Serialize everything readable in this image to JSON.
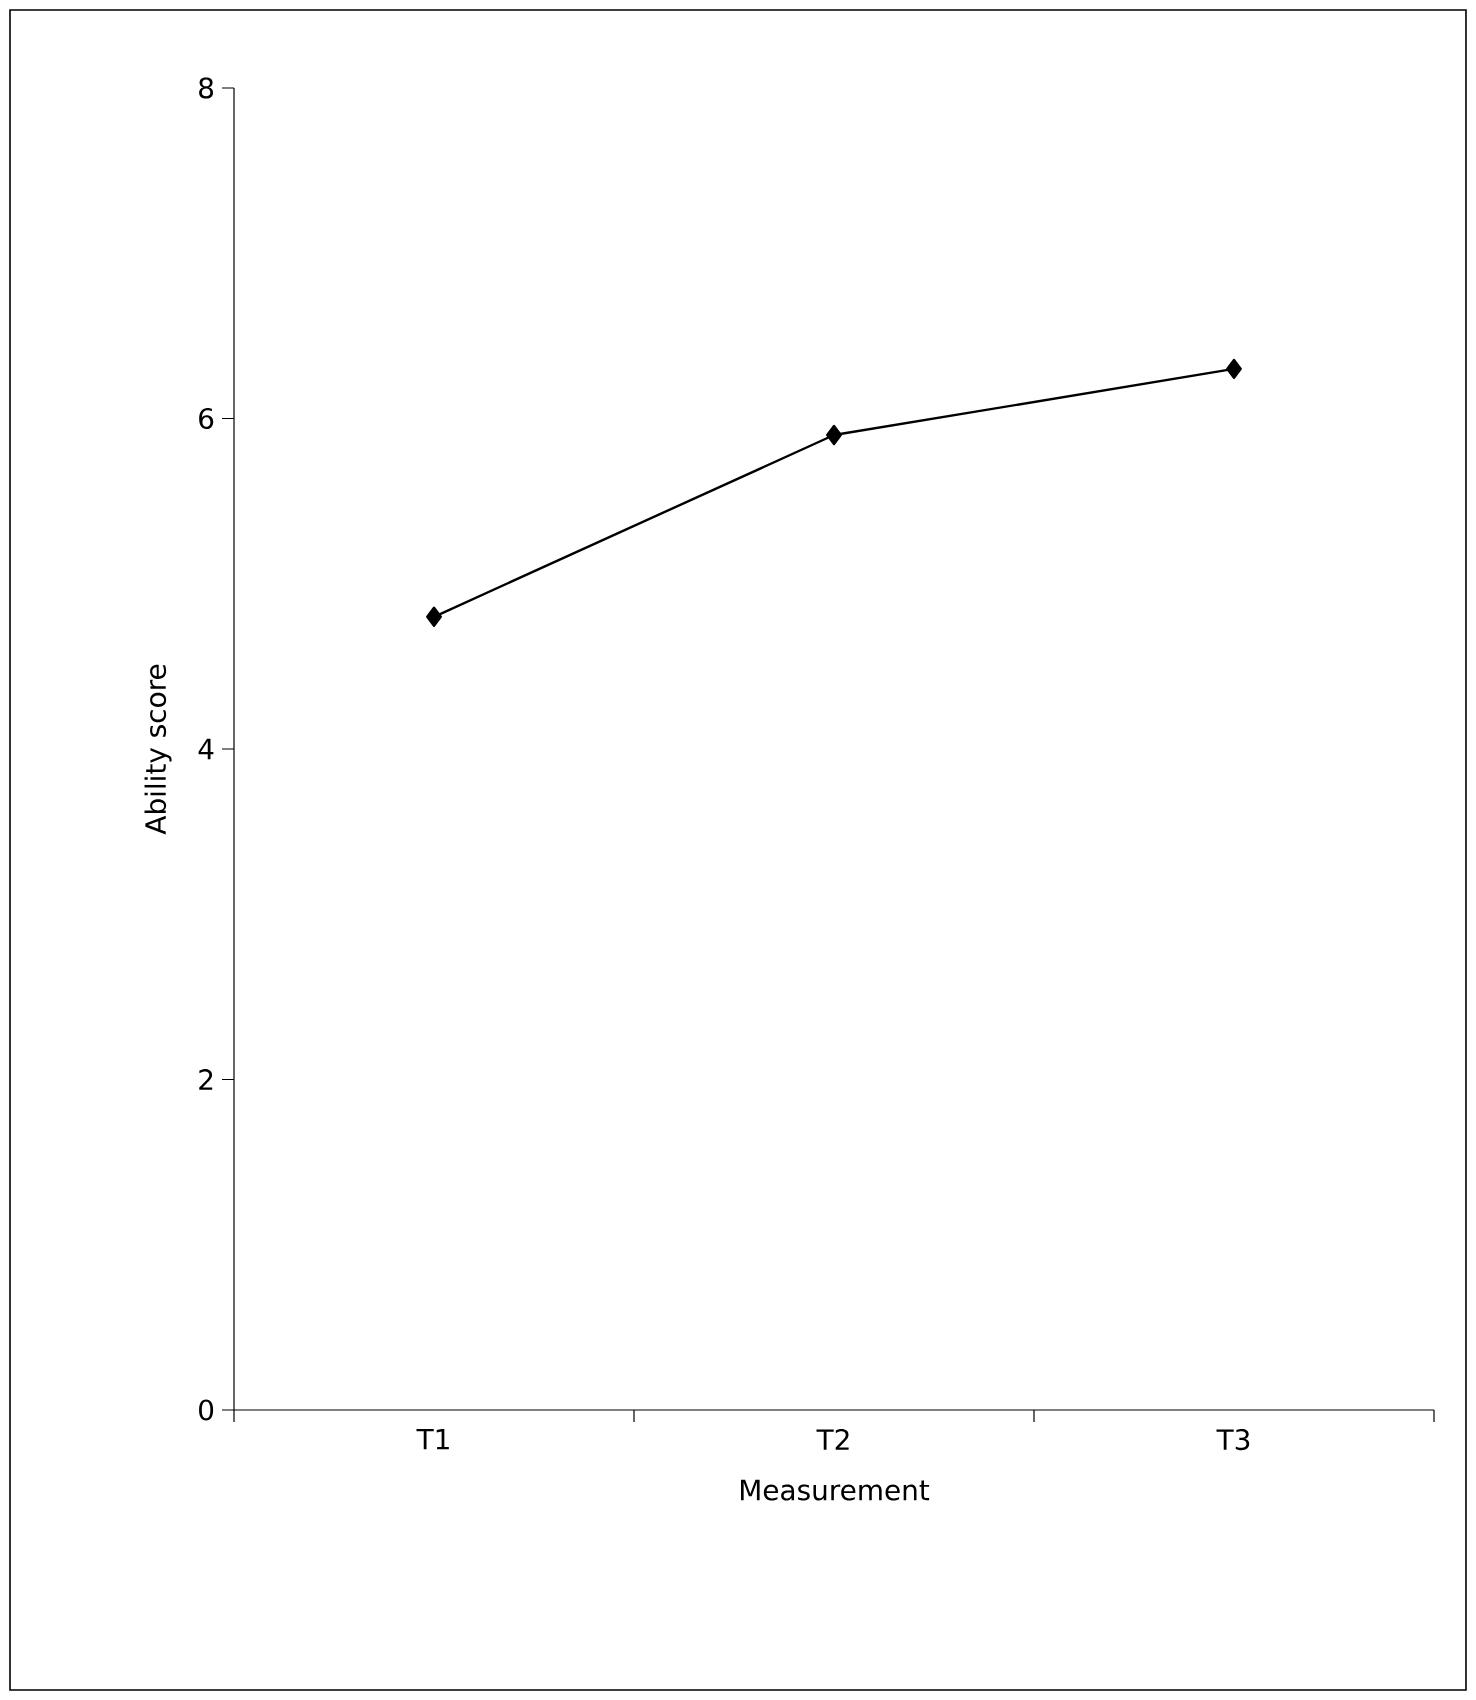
{
  "chart_data": {
    "type": "line",
    "xlabel": "Measurement",
    "ylabel": "Ability score",
    "categories": [
      "T1",
      "T2",
      "T3"
    ],
    "series": [
      {
        "color": "#000000",
        "values": [
          4.8,
          5.9,
          6.3
        ]
      }
    ],
    "ylim": [
      0,
      8
    ],
    "yticks": [
      0,
      2,
      4,
      6,
      8
    ],
    "marker": "diamond",
    "line_style": "solid"
  }
}
